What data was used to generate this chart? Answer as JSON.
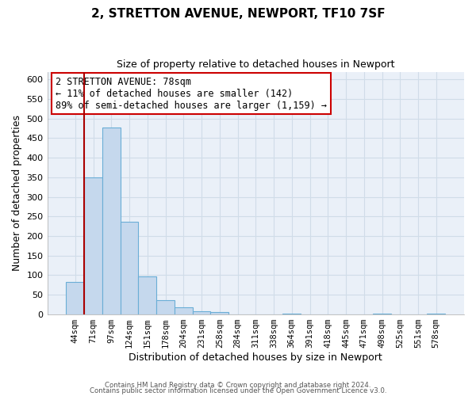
{
  "title": "2, STRETTON AVENUE, NEWPORT, TF10 7SF",
  "subtitle": "Size of property relative to detached houses in Newport",
  "xlabel": "Distribution of detached houses by size in Newport",
  "ylabel": "Number of detached properties",
  "bar_labels": [
    "44sqm",
    "71sqm",
    "97sqm",
    "124sqm",
    "151sqm",
    "178sqm",
    "204sqm",
    "231sqm",
    "258sqm",
    "284sqm",
    "311sqm",
    "338sqm",
    "364sqm",
    "391sqm",
    "418sqm",
    "445sqm",
    "471sqm",
    "498sqm",
    "525sqm",
    "551sqm",
    "578sqm"
  ],
  "bar_values": [
    83,
    350,
    478,
    236,
    97,
    35,
    18,
    7,
    5,
    0,
    0,
    0,
    2,
    0,
    0,
    0,
    0,
    1,
    0,
    0,
    1
  ],
  "bar_color": "#c5d8ed",
  "bar_edge_color": "#6aaed6",
  "ylim": [
    0,
    620
  ],
  "yticks": [
    0,
    50,
    100,
    150,
    200,
    250,
    300,
    350,
    400,
    450,
    500,
    550,
    600
  ],
  "property_line_color": "#aa0000",
  "annotation_title": "2 STRETTON AVENUE: 78sqm",
  "annotation_line1": "← 11% of detached houses are smaller (142)",
  "annotation_line2": "89% of semi-detached houses are larger (1,159) →",
  "annotation_box_color": "#ffffff",
  "annotation_box_edge": "#cc0000",
  "footer_line1": "Contains HM Land Registry data © Crown copyright and database right 2024.",
  "footer_line2": "Contains public sector information licensed under the Open Government Licence v3.0.",
  "grid_color": "#d0dce8",
  "bg_color": "#eaf0f8"
}
